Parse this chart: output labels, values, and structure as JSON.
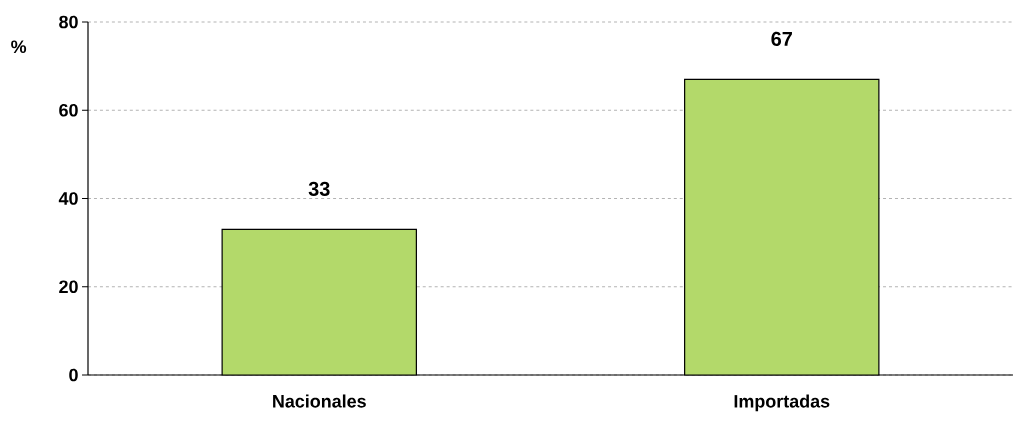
{
  "chart_data": {
    "type": "bar",
    "ylabel": "%",
    "categories": [
      "Nacionales",
      "Importadas"
    ],
    "values": [
      33,
      67
    ],
    "color": "#b3d96a",
    "ylim": [
      0,
      80
    ],
    "yticks": [
      0,
      20,
      40,
      60,
      80
    ],
    "grid": "y",
    "data_labels": true
  }
}
